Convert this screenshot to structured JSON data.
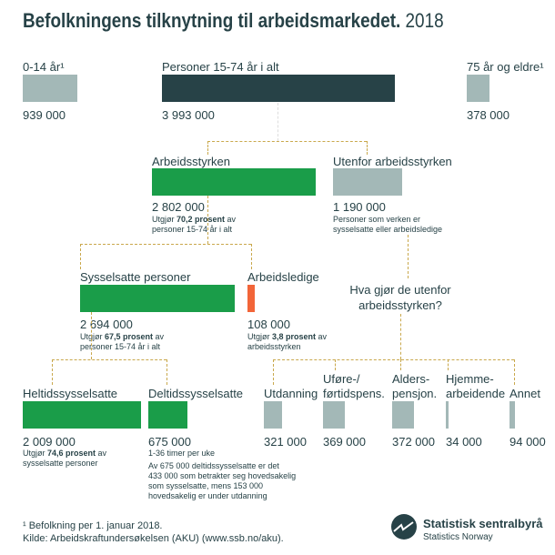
{
  "title": {
    "main": "Befolkningens tilknytning til arbeidsmarkedet.",
    "year": "2018"
  },
  "top": [
    {
      "label": "0-14 år¹",
      "value": "939 000"
    },
    {
      "label": "Personer 15-74 år i alt",
      "value": "3 993 000"
    },
    {
      "label": "75 år og eldre¹",
      "value": "378 000"
    }
  ],
  "arbeidsstyrken": {
    "label": "Arbeidsstyrken",
    "value": "2 802 000",
    "note_pre": "Utgjør ",
    "note_bold": "70,2 prosent",
    "note_post": " av",
    "note_line2": "personer 15-74 år i alt"
  },
  "utenfor": {
    "label": "Utenfor arbeidsstyrken",
    "value": "1 190 000",
    "note1": "Personer som verken er",
    "note2": "sysselsatte eller arbeidsledige"
  },
  "sysselsatte": {
    "label": "Sysselsatte personer",
    "value": "2 694 000",
    "note_pre": "Utgjør ",
    "note_bold": "67,5 prosent",
    "note_post": " av",
    "note_line2": "personer 15-74 år i alt"
  },
  "ledige": {
    "label": "Arbeidsledige",
    "value": "108 000",
    "note_pre": "Utgjør ",
    "note_bold": "3,8 prosent",
    "note_post": " av",
    "note_line2": "arbeidsstyrken"
  },
  "question": {
    "line1": "Hva gjør de utenfor",
    "line2": "arbeidsstyrken?"
  },
  "heltid": {
    "label": "Heltidssysselsatte",
    "value": "2 009 000",
    "note_pre": "Utgjør ",
    "note_bold": "74,6 prosent",
    "note_post": " av",
    "note_line2": "sysselsatte personer"
  },
  "deltid": {
    "label": "Deltidssysselsatte",
    "value": "675 000",
    "note0": "1-36 timer per uke",
    "note1": "Av 675 000 deltidssysselsatte er det",
    "note2": "433 000 som betrakter seg hovedsakelig",
    "note3": "som sysselsatte, mens 153 000",
    "note4": "hovedsakelig er under utdanning"
  },
  "outside": [
    {
      "l1": "",
      "l2": "Utdanning",
      "value": "321 000"
    },
    {
      "l1": "Uføre-/",
      "l2": "førtidspens.",
      "value": "369 000"
    },
    {
      "l1": "Alders-",
      "l2": "pensjon.",
      "value": "372 000"
    },
    {
      "l1": "Hjemme-",
      "l2": "arbeidende",
      "value": "34 000"
    },
    {
      "l1": "",
      "l2": "Annet",
      "value": "94 000"
    }
  ],
  "footer": {
    "note": "¹ Befolkning per 1. januar 2018.",
    "source": "Kilde: Arbeidskraftundersøkelsen (AKU) (www.ssb.no/aku)."
  },
  "logo": {
    "name": "Statistisk sentralbyrå",
    "sub": "Statistics Norway"
  },
  "colors": {
    "dark": "#274247",
    "green": "#1a9d49",
    "gray": "#a3b8b7",
    "orange": "#f26539",
    "connector": "#c9a84c"
  }
}
